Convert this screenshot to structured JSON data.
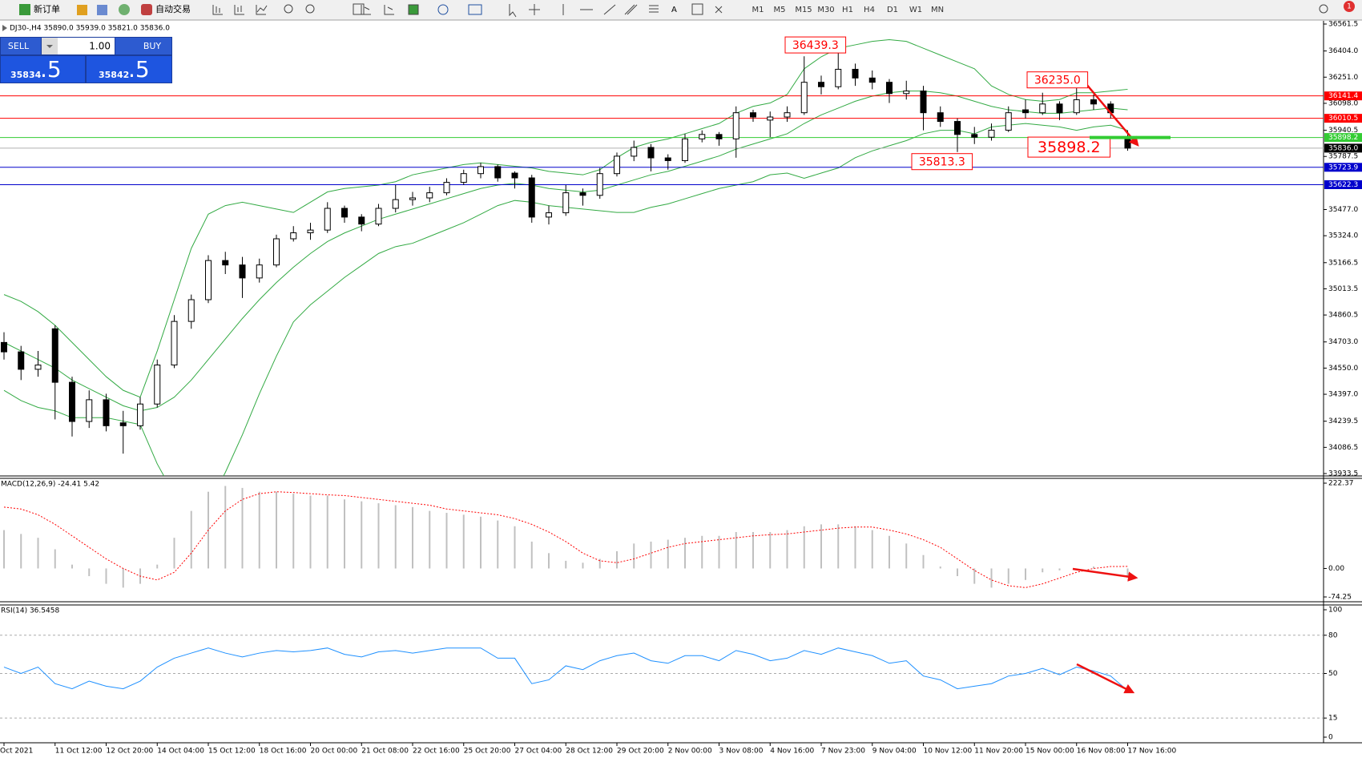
{
  "toolbar": {
    "buttons": [
      "新订单",
      "自动交易"
    ],
    "timeframes": [
      "M1",
      "M5",
      "M15",
      "M30",
      "H1",
      "H4",
      "D1",
      "W1",
      "MN"
    ],
    "badge": "1"
  },
  "trade_panel": {
    "sell": "SELL",
    "buy": "BUY",
    "volume": "1.00",
    "bid": [
      "35834",
      ".5"
    ],
    "ask": [
      "35842",
      ".5"
    ]
  },
  "chart_data": [
    {
      "type": "candlestick",
      "title": "DJ30-,H4  35890.0 35939.0 35821.0 35836.0",
      "categories": [
        "Oct 2021",
        null,
        null,
        "11 Oct 12:00",
        null,
        null,
        "12 Oct 20:00",
        null,
        null,
        "14 Oct 04:00",
        null,
        null,
        "15 Oct 12:00",
        null,
        null,
        "18 Oct 16:00",
        null,
        null,
        "20 Oct 00:00",
        null,
        null,
        "21 Oct 08:00",
        null,
        null,
        "22 Oct 16:00",
        null,
        null,
        "25 Oct 20:00",
        null,
        null,
        "27 Oct 04:00",
        null,
        null,
        "28 Oct 12:00",
        null,
        null,
        "29 Oct 20:00",
        null,
        null,
        "2 Nov 00:00",
        null,
        null,
        "3 Nov 08:00",
        null,
        null,
        "4 Nov 16:00",
        null,
        null,
        "7 Nov 23:00",
        null,
        null,
        "9 Nov 04:00",
        null,
        null,
        "10 Nov 12:00",
        null,
        null,
        "11 Nov 20:00",
        null,
        null,
        "15 Nov 00:00",
        null,
        null,
        "16 Nov 08:00",
        null,
        null,
        "17 Nov 16:00"
      ],
      "open": [
        34700,
        34645,
        34543,
        34780,
        34467,
        34238,
        34365,
        34230,
        34213,
        34340,
        34568,
        34823,
        34950,
        35179,
        35153,
        35077,
        35153,
        35306,
        35341,
        35357,
        35484,
        35433,
        35392,
        35484,
        35535,
        35545,
        35575,
        35636,
        35687,
        35728,
        35690,
        35662,
        35433,
        35458,
        35575,
        35560,
        35687,
        35789,
        35840,
        35779,
        35763,
        35890,
        35916,
        35890,
        36043,
        36000,
        36018,
        36043,
        36221,
        36195,
        36297,
        36246,
        36221,
        36155,
        36170,
        36043,
        35992,
        35916,
        35900,
        35941,
        36060,
        36043,
        36094,
        36043,
        36119,
        36094,
        35890
      ],
      "high": [
        34760,
        34680,
        34650,
        34800,
        34500,
        34420,
        34400,
        34300,
        34380,
        34600,
        34860,
        34980,
        35210,
        35230,
        35200,
        35190,
        35330,
        35380,
        35400,
        35520,
        35500,
        35450,
        35510,
        35620,
        35580,
        35610,
        35660,
        35710,
        35750,
        35740,
        35700,
        35680,
        35500,
        35620,
        35600,
        35720,
        35810,
        35880,
        35860,
        35800,
        35920,
        35940,
        35930,
        36080,
        36060,
        36050,
        36080,
        36373,
        36260,
        36439.3,
        36330,
        36290,
        36240,
        36230,
        36200,
        36080,
        36010,
        35960,
        35980,
        36080,
        36120,
        36160,
        36110,
        36235.0,
        36150,
        36110,
        35939
      ],
      "low": [
        34600,
        34480,
        34500,
        34250,
        34150,
        34200,
        34180,
        34050,
        34190,
        34320,
        34550,
        34780,
        34930,
        35100,
        34960,
        35050,
        35140,
        35290,
        35300,
        35340,
        35400,
        35350,
        35380,
        35460,
        35500,
        35520,
        35560,
        35620,
        35660,
        35640,
        35600,
        35400,
        35390,
        35440,
        35500,
        35540,
        35670,
        35760,
        35700,
        35710,
        35750,
        35870,
        35850,
        35780,
        35990,
        35900,
        35990,
        36030,
        36150,
        36180,
        36200,
        36180,
        36100,
        36120,
        35940,
        35960,
        35813.3,
        35860,
        35880,
        35930,
        36010,
        36030,
        36000,
        36030,
        36060,
        36010,
        35821
      ],
      "close": [
        34645,
        34543,
        34568,
        34467,
        34238,
        34365,
        34213,
        34213,
        34340,
        34568,
        34823,
        34950,
        35179,
        35153,
        35077,
        35153,
        35306,
        35341,
        35357,
        35484,
        35433,
        35392,
        35484,
        35535,
        35545,
        35575,
        35636,
        35687,
        35728,
        35662,
        35662,
        35433,
        35458,
        35575,
        35560,
        35687,
        35789,
        35840,
        35779,
        35763,
        35890,
        35916,
        35890,
        36043,
        36018,
        36018,
        36043,
        36221,
        36195,
        36297,
        36246,
        36221,
        36155,
        36170,
        36043,
        35992,
        35916,
        35900,
        35941,
        36043,
        36043,
        36094,
        36043,
        36119,
        36094,
        36043,
        35836
      ],
      "bands": {
        "color": "#33aa44",
        "upper": [
          34980,
          34940,
          34880,
          34800,
          34700,
          34600,
          34500,
          34420,
          34380,
          34650,
          34950,
          35250,
          35450,
          35500,
          35520,
          35500,
          35480,
          35460,
          35520,
          35580,
          35600,
          35610,
          35620,
          35640,
          35680,
          35700,
          35720,
          35740,
          35750,
          35740,
          35730,
          35720,
          35700,
          35690,
          35680,
          35710,
          35780,
          35840,
          35870,
          35890,
          35920,
          35950,
          35980,
          36040,
          36080,
          36100,
          36150,
          36300,
          36370,
          36420,
          36440,
          36460,
          36470,
          36460,
          36420,
          36380,
          36340,
          36300,
          36200,
          36150,
          36120,
          36110,
          36120,
          36160,
          36160,
          36170,
          36180
        ],
        "middle": [
          34700,
          34650,
          34600,
          34550,
          34480,
          34430,
          34380,
          34330,
          34300,
          34320,
          34380,
          34480,
          34600,
          34720,
          34840,
          34950,
          35050,
          35140,
          35220,
          35290,
          35340,
          35380,
          35420,
          35450,
          35480,
          35510,
          35540,
          35570,
          35600,
          35620,
          35630,
          35620,
          35600,
          35590,
          35580,
          35590,
          35620,
          35650,
          35680,
          35700,
          35730,
          35760,
          35790,
          35830,
          35860,
          35890,
          35920,
          35980,
          36030,
          36070,
          36110,
          36140,
          36160,
          36170,
          36170,
          36160,
          36140,
          36110,
          36080,
          36060,
          36050,
          36040,
          36040,
          36050,
          36060,
          36070,
          36060
        ],
        "lower": [
          34420,
          34360,
          34320,
          34300,
          34260,
          34260,
          34260,
          34240,
          34220,
          33990,
          33810,
          33710,
          33750,
          33940,
          34160,
          34400,
          34620,
          34820,
          34920,
          35000,
          35080,
          35150,
          35220,
          35260,
          35280,
          35320,
          35360,
          35400,
          35450,
          35500,
          35530,
          35520,
          35500,
          35490,
          35480,
          35470,
          35460,
          35460,
          35490,
          35510,
          35540,
          35570,
          35600,
          35620,
          35640,
          35680,
          35690,
          35660,
          35690,
          35720,
          35780,
          35820,
          35850,
          35880,
          35920,
          35940,
          35940,
          35920,
          35960,
          35970,
          35980,
          35970,
          35960,
          35940,
          35960,
          35970,
          35940
        ]
      },
      "ylim": [
        33933.5,
        36561.5
      ],
      "yticks": [
        {
          "value": 36561.5,
          "label": "36561.5"
        },
        {
          "value": 36404,
          "label": "36404.0"
        },
        {
          "value": 36251,
          "label": "36251.0"
        },
        {
          "value": 36098,
          "label": "36098.0"
        },
        {
          "value": 35940.5,
          "label": "35940.5"
        },
        {
          "value": 35787.5,
          "label": "35787.5"
        },
        {
          "value": 35477,
          "label": "35477.0"
        },
        {
          "value": 35324,
          "label": "35324.0"
        },
        {
          "value": 35166.5,
          "label": "35166.5"
        },
        {
          "value": 35013.5,
          "label": "35013.5"
        },
        {
          "value": 34860.5,
          "label": "34860.5"
        },
        {
          "value": 34703,
          "label": "34703.0"
        },
        {
          "value": 34550,
          "label": "34550.0"
        },
        {
          "value": 34397,
          "label": "34397.0"
        },
        {
          "value": 34239.5,
          "label": "34239.5"
        },
        {
          "value": 34086.5,
          "label": "34086.5"
        },
        {
          "value": 33933.5,
          "label": "33933.5"
        }
      ],
      "levels": [
        {
          "value": 36141.4,
          "color": "#ff0000"
        },
        {
          "value": 36010.5,
          "color": "#ff0000"
        },
        {
          "value": 35898.2,
          "color": "#33cc33"
        },
        {
          "value": 35836,
          "label": "35836.0",
          "color": "#000000"
        },
        {
          "value": 35723.9,
          "color": "#0000cc"
        },
        {
          "value": 35622.3,
          "color": "#0000cc"
        }
      ],
      "annotations": [
        {
          "value": 36439.3
        },
        {
          "value": 36235,
          "label": "36235.0"
        },
        {
          "value": 35898.2
        },
        {
          "value": 35813.3
        }
      ],
      "annotation_color": "#ff0000"
    },
    {
      "type": "macd",
      "title": "MACD(12,26,9) -24.41 5.42",
      "values": [
        100,
        90,
        80,
        50,
        10,
        -20,
        -40,
        -50,
        -40,
        10,
        80,
        150,
        200,
        215,
        210,
        200,
        200,
        195,
        190,
        190,
        180,
        175,
        170,
        165,
        160,
        150,
        145,
        140,
        135,
        125,
        110,
        70,
        40,
        20,
        15,
        25,
        45,
        65,
        70,
        75,
        80,
        85,
        85,
        95,
        95,
        95,
        100,
        110,
        115,
        115,
        110,
        100,
        85,
        65,
        35,
        5,
        -20,
        -40,
        -50,
        -40,
        -30,
        -10,
        -5,
        0,
        5,
        0,
        -24.41
      ],
      "signal": [
        160,
        155,
        140,
        115,
        85,
        55,
        25,
        0,
        -20,
        -30,
        -10,
        40,
        100,
        150,
        180,
        195,
        200,
        198,
        195,
        192,
        190,
        185,
        180,
        175,
        170,
        165,
        155,
        150,
        145,
        140,
        130,
        115,
        95,
        70,
        40,
        20,
        15,
        25,
        40,
        55,
        65,
        70,
        75,
        80,
        85,
        88,
        90,
        95,
        100,
        105,
        108,
        108,
        100,
        90,
        75,
        55,
        25,
        -5,
        -30,
        -45,
        -50,
        -40,
        -25,
        -10,
        0,
        5,
        5.42
      ],
      "color": "#c0c0c0",
      "signal_color": "#ff0000",
      "ylim": [
        -74.25,
        222.37
      ],
      "yticks": [
        222.37,
        {
          "value": 0,
          "label": "0.00"
        },
        -74.25
      ]
    },
    {
      "type": "line",
      "title": "RSI(14) 36.5458",
      "values": [
        55,
        50,
        55,
        42,
        38,
        44,
        40,
        38,
        44,
        55,
        62,
        66,
        70,
        66,
        63,
        66,
        68,
        67,
        68,
        70,
        65,
        63,
        67,
        68,
        66,
        68,
        70,
        70,
        70,
        62,
        62,
        42,
        45,
        56,
        53,
        60,
        64,
        66,
        60,
        58,
        64,
        64,
        60,
        68,
        65,
        60,
        62,
        68,
        65,
        70,
        67,
        64,
        58,
        60,
        48,
        45,
        38,
        40,
        42,
        48,
        50,
        54,
        49,
        55,
        52,
        48,
        36.5458
      ],
      "color": "#1e90ff",
      "ylim": [
        0,
        100
      ],
      "yticks": [
        100,
        80,
        50,
        15,
        0
      ]
    }
  ]
}
